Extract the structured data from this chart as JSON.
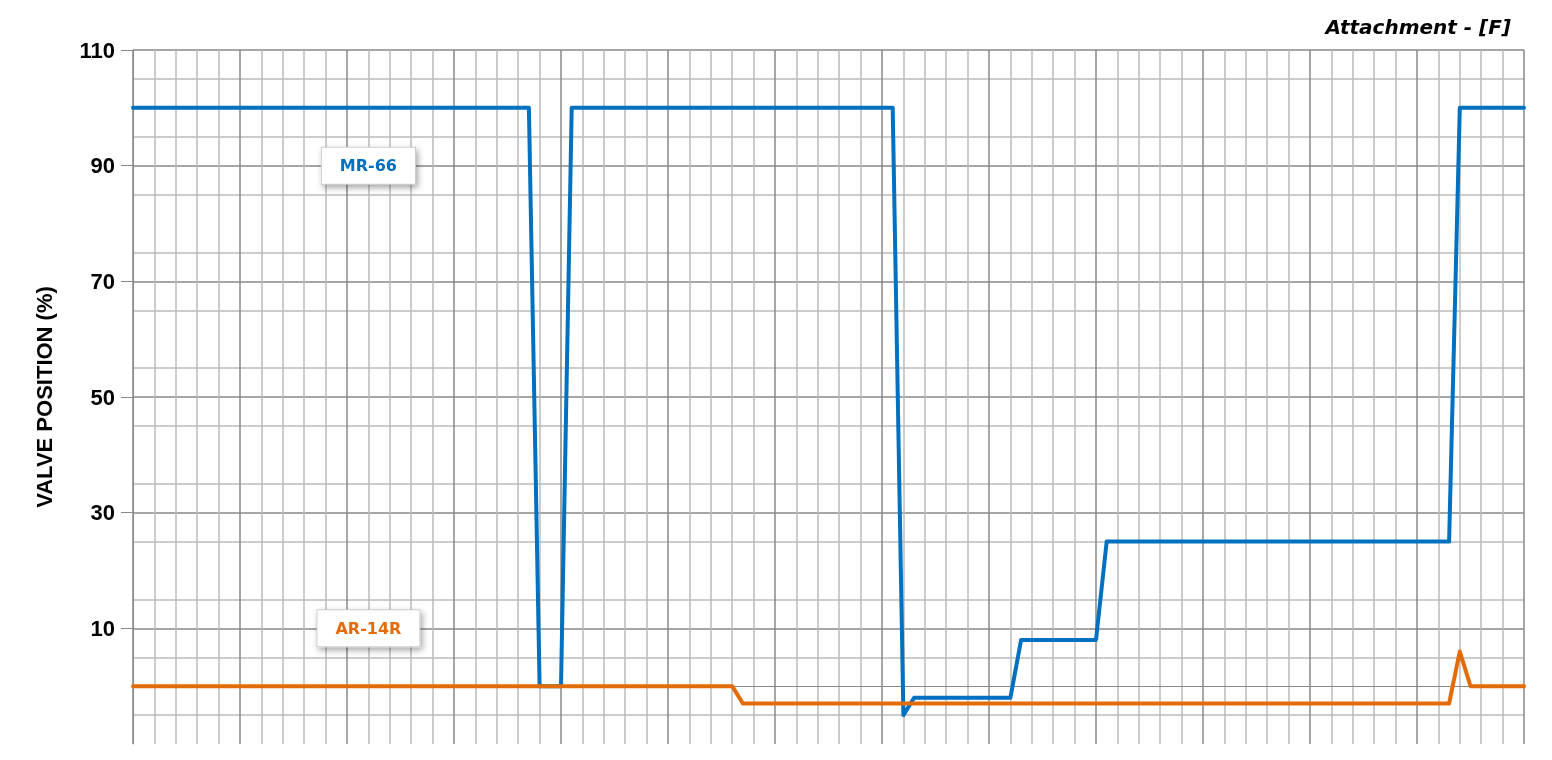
{
  "chart_data": {
    "type": "line",
    "title": "Attachment - [F]",
    "ylabel": "VALVE POSITION (%)",
    "categories": [
      null,
      null,
      null,
      null,
      null,
      null,
      null,
      null,
      null,
      null,
      null,
      null,
      null,
      null,
      null,
      null,
      null,
      null,
      null,
      null,
      null,
      null,
      null,
      null,
      null,
      null,
      null,
      null,
      null,
      null,
      null,
      null,
      null,
      null,
      null,
      null,
      null,
      null,
      null,
      null,
      null,
      null,
      null,
      null,
      null,
      null,
      null,
      null,
      null,
      null,
      null,
      null,
      null,
      null,
      null,
      null,
      null,
      null,
      null,
      null,
      null,
      null,
      null,
      null,
      null,
      null,
      null,
      null,
      null,
      null,
      null,
      null,
      null,
      null,
      null,
      null,
      null,
      null,
      null,
      null,
      null,
      null,
      null,
      null,
      null,
      null,
      null,
      null,
      null,
      null,
      null,
      null,
      null,
      null,
      null,
      null,
      null,
      null,
      null,
      null,
      null,
      null,
      null,
      null,
      null,
      null,
      null,
      null,
      null,
      null,
      null,
      null,
      null,
      null,
      null,
      null,
      null,
      null,
      null,
      null,
      null,
      null,
      null,
      null,
      null,
      null,
      null,
      null,
      null,
      null,
      null
    ],
    "ylim": [
      -10,
      110
    ],
    "yticks": [
      10,
      30,
      50,
      70,
      90,
      110
    ],
    "grid": true,
    "legend": false,
    "marker": "none",
    "line_style": "solid",
    "series": [
      {
        "name": "MR-66",
        "color": "#0070c0",
        "values": [
          100,
          100,
          100,
          100,
          100,
          100,
          100,
          100,
          100,
          100,
          100,
          100,
          100,
          100,
          100,
          100,
          100,
          100,
          100,
          100,
          100,
          100,
          100,
          100,
          100,
          100,
          100,
          100,
          100,
          100,
          100,
          100,
          100,
          100,
          100,
          100,
          100,
          100,
          0,
          0,
          0,
          100,
          100,
          100,
          100,
          100,
          100,
          100,
          100,
          100,
          100,
          100,
          100,
          100,
          100,
          100,
          100,
          100,
          100,
          100,
          100,
          100,
          100,
          100,
          100,
          100,
          100,
          100,
          100,
          100,
          100,
          100,
          -5,
          -2,
          -2,
          -2,
          -2,
          -2,
          -2,
          -2,
          -2,
          -2,
          -2,
          8,
          8,
          8,
          8,
          8,
          8,
          8,
          8,
          25,
          25,
          25,
          25,
          25,
          25,
          25,
          25,
          25,
          25,
          25,
          25,
          25,
          25,
          25,
          25,
          25,
          25,
          25,
          25,
          25,
          25,
          25,
          25,
          25,
          25,
          25,
          25,
          25,
          25,
          25,
          25,
          25,
          100,
          100,
          100,
          100,
          100,
          100,
          100
        ]
      },
      {
        "name": "AR-14R",
        "color": "#e36c09",
        "values": [
          0,
          0,
          0,
          0,
          0,
          0,
          0,
          0,
          0,
          0,
          0,
          0,
          0,
          0,
          0,
          0,
          0,
          0,
          0,
          0,
          0,
          0,
          0,
          0,
          0,
          0,
          0,
          0,
          0,
          0,
          0,
          0,
          0,
          0,
          0,
          0,
          0,
          0,
          0,
          0,
          0,
          0,
          0,
          0,
          0,
          0,
          0,
          0,
          0,
          0,
          0,
          0,
          0,
          0,
          0,
          0,
          0,
          -3,
          -3,
          -3,
          -3,
          -3,
          -3,
          -3,
          -3,
          -3,
          -3,
          -3,
          -3,
          -3,
          -3,
          -3,
          -3,
          -3,
          -3,
          -3,
          -3,
          -3,
          -3,
          -3,
          -3,
          -3,
          -3,
          -3,
          -3,
          -3,
          -3,
          -3,
          -3,
          -3,
          -3,
          -3,
          -3,
          -3,
          -3,
          -3,
          -3,
          -3,
          -3,
          -3,
          -3,
          -3,
          -3,
          -3,
          -3,
          -3,
          -3,
          -3,
          -3,
          -3,
          -3,
          -3,
          -3,
          -3,
          -3,
          -3,
          -3,
          -3,
          -3,
          -3,
          -3,
          -3,
          -3,
          -3,
          6,
          0,
          0,
          0,
          0,
          0,
          0
        ]
      }
    ]
  }
}
